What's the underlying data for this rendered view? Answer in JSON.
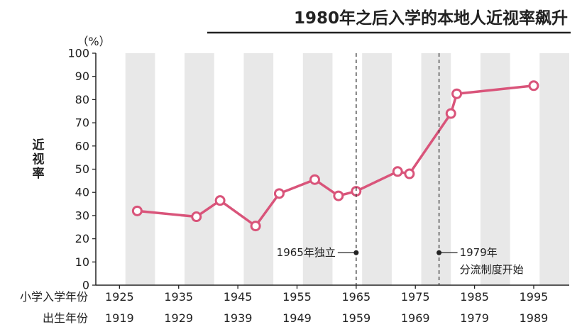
{
  "chart_data": {
    "type": "line",
    "title": "1980年之后入学的本地人近视率飙升",
    "ylabel": "近视率",
    "unit": "（%）",
    "ylim": [
      0,
      100
    ],
    "yticks": [
      0,
      10,
      20,
      30,
      40,
      50,
      60,
      70,
      80,
      90,
      100
    ],
    "xlim": [
      1921,
      2001
    ],
    "x_row_label": "小学入学年份",
    "x_ticks": [
      1925,
      1935,
      1945,
      1955,
      1965,
      1975,
      1985,
      1995
    ],
    "birth_row_label": "出生年份",
    "birth_ticks": [
      1919,
      1929,
      1939,
      1949,
      1959,
      1969,
      1979,
      1989
    ],
    "shaded_bands": [
      [
        1926,
        1931
      ],
      [
        1936,
        1941
      ],
      [
        1946,
        1951
      ],
      [
        1956,
        1961
      ],
      [
        1966,
        1971
      ],
      [
        1976,
        1981
      ],
      [
        1986,
        1991
      ],
      [
        1996,
        2001
      ]
    ],
    "line_color": "#d9547a",
    "band_color": "#e8e8e8",
    "series": [
      {
        "x": [
          1928,
          1938,
          1942,
          1948,
          1952,
          1958,
          1962,
          1965,
          1972,
          1974,
          1981,
          1982,
          1995
        ],
        "y": [
          32,
          29.5,
          36.5,
          25.5,
          39.5,
          45.5,
          38.5,
          40.5,
          49,
          48,
          74,
          82.5,
          86
        ]
      }
    ],
    "annotations": [
      {
        "x": 1965,
        "y": 14,
        "label": "1965年独立",
        "side": "left"
      },
      {
        "x": 1979,
        "y": 14,
        "label_lines": [
          "1979年",
          "分流制度开始"
        ],
        "side": "right"
      }
    ]
  }
}
